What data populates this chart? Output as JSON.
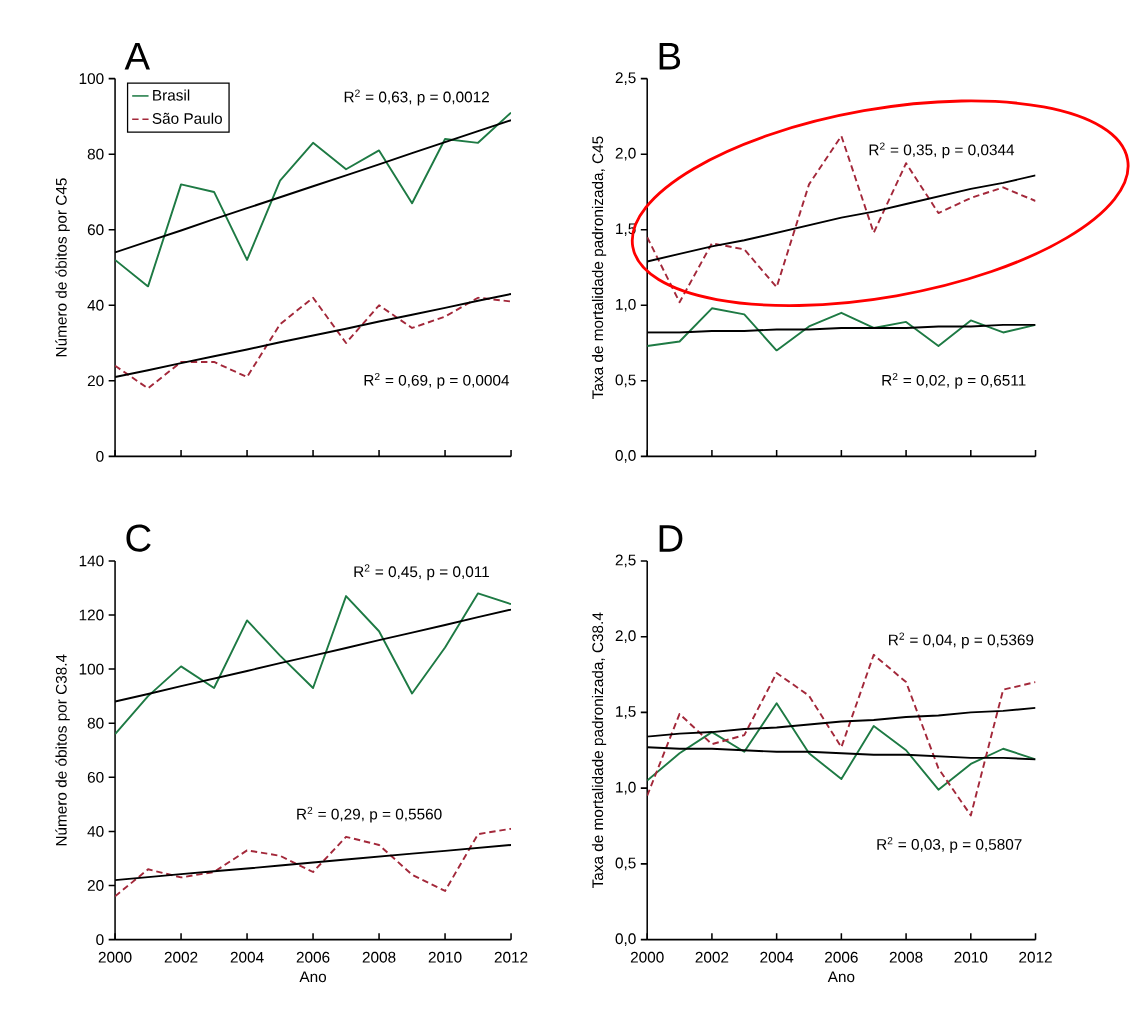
{
  "chart_data": [
    {
      "type": "line",
      "title": "A",
      "ylabel": "Número de óbitos por C45",
      "x": [
        2000,
        2001,
        2002,
        2003,
        2004,
        2005,
        2006,
        2007,
        2008,
        2009,
        2010,
        2011,
        2012
      ],
      "series": [
        {
          "name": "Brasil",
          "color": "#1e7a44",
          "line_style": "solid",
          "values": [
            52,
            45,
            72,
            70,
            52,
            73,
            83,
            76,
            81,
            67,
            84,
            83,
            91
          ]
        },
        {
          "name": "São Paulo",
          "color": "#a3283a",
          "line_style": "dashed",
          "values": [
            24,
            18,
            25,
            25,
            21,
            35,
            42,
            30,
            40,
            34,
            37,
            42,
            41
          ]
        },
        {
          "type": "line",
          "color": "#000000",
          "line_style": "solid",
          "values": [
            54,
            56.9,
            59.8,
            62.8,
            65.7,
            68.6,
            71.5,
            74.4,
            77.3,
            80.3,
            83.2,
            86.1,
            89
          ]
        },
        {
          "type": "line",
          "color": "#000000",
          "line_style": "solid",
          "values": [
            21,
            22.8,
            24.7,
            26.5,
            28.3,
            30.2,
            32,
            33.8,
            35.7,
            37.5,
            39.3,
            41.2,
            43
          ]
        }
      ],
      "xlim": [
        2000,
        2012
      ],
      "xticks": [
        2000,
        2002,
        2004,
        2006,
        2008,
        2010,
        2012
      ],
      "ylim": [
        0,
        100
      ],
      "yticks": [
        0,
        20,
        40,
        60,
        80,
        100
      ],
      "tick_labels": "y",
      "legend": "top left",
      "marker": "none",
      "grid": false,
      "annotations": [
        "R$^{2}$ = 0,63, p = 0,0012",
        "R$^{2}$ = 0,69, p = 0,0004"
      ]
    },
    {
      "type": "line",
      "title": "B",
      "ylabel": "Taxa de mortalidade padronizada, C45",
      "x": [
        2000,
        2001,
        2002,
        2003,
        2004,
        2005,
        2006,
        2007,
        2008,
        2009,
        2010,
        2011,
        2012
      ],
      "series": [
        {
          "color": "#1e7a44",
          "line_style": "solid",
          "values": [
            0.73,
            0.76,
            0.98,
            0.94,
            0.7,
            0.86,
            0.95,
            0.85,
            0.89,
            0.73,
            0.9,
            0.82,
            0.87
          ]
        },
        {
          "color": "#a3283a",
          "line_style": "dashed",
          "values": [
            1.45,
            1.02,
            1.41,
            1.37,
            1.12,
            1.8,
            2.12,
            1.48,
            1.94,
            1.61,
            1.71,
            1.78,
            1.69
          ]
        },
        {
          "type": "line",
          "color": "#000000",
          "line_style": "solid",
          "values": [
            1.29,
            1.34,
            1.39,
            1.43,
            1.48,
            1.53,
            1.58,
            1.62,
            1.67,
            1.72,
            1.77,
            1.81,
            1.86
          ]
        },
        {
          "type": "line",
          "color": "#000000",
          "line_style": "solid",
          "values": [
            0.82,
            0.82,
            0.83,
            0.83,
            0.84,
            0.84,
            0.85,
            0.85,
            0.85,
            0.86,
            0.86,
            0.87,
            0.87
          ]
        }
      ],
      "xlim": [
        2000,
        2012
      ],
      "xticks": [
        2000,
        2002,
        2004,
        2006,
        2008,
        2010,
        2012
      ],
      "ylim": [
        0,
        2.5
      ],
      "yticks": [
        {
          "value": 0,
          "label": "0,0"
        },
        {
          "value": 0.5,
          "label": "0,5"
        },
        {
          "value": 1,
          "label": "1,0"
        },
        {
          "value": 1.5,
          "label": "1,5"
        },
        {
          "value": 2,
          "label": "2,0"
        },
        {
          "value": 2.5,
          "label": "2,5"
        }
      ],
      "tick_labels": "y",
      "marker": "none",
      "grid": false,
      "annotations": [
        "R$^{2}$ = 0,35, p = 0,0344",
        "R$^{2}$ = 0,02, p = 0,6511"
      ]
    },
    {
      "type": "line",
      "title": "C",
      "xlabel": "Ano",
      "ylabel": "Número de óbitos por C38.4",
      "x": [
        2000,
        2001,
        2002,
        2003,
        2004,
        2005,
        2006,
        2007,
        2008,
        2009,
        2010,
        2011,
        2012
      ],
      "series": [
        {
          "color": "#1e7a44",
          "line_style": "solid",
          "values": [
            76,
            90,
            101,
            93,
            118,
            105,
            93,
            127,
            114,
            91,
            108,
            128,
            124
          ]
        },
        {
          "color": "#a3283a",
          "line_style": "dashed",
          "values": [
            16,
            26,
            23,
            25,
            33,
            31,
            25,
            38,
            35,
            24,
            18,
            39,
            41
          ]
        },
        {
          "type": "line",
          "color": "#000000",
          "line_style": "solid",
          "values": [
            88,
            90.8,
            93.7,
            96.5,
            99.3,
            102.2,
            105,
            107.8,
            110.7,
            113.5,
            116.3,
            119.2,
            122
          ]
        },
        {
          "type": "line",
          "color": "#000000",
          "line_style": "solid",
          "values": [
            22,
            23.1,
            24.2,
            25.3,
            26.3,
            27.4,
            28.5,
            29.6,
            30.7,
            31.8,
            32.8,
            33.9,
            35
          ]
        }
      ],
      "xlim": [
        2000,
        2012
      ],
      "xticks": [
        2000,
        2002,
        2004,
        2006,
        2008,
        2010,
        2012
      ],
      "ylim": [
        0,
        140
      ],
      "yticks": [
        0,
        20,
        40,
        60,
        80,
        100,
        120,
        140
      ],
      "marker": "none",
      "grid": false,
      "annotations": [
        "R$^{2}$ = 0,45, p = 0,011",
        "R$^{2}$ = 0,29, p = 0,5560"
      ]
    },
    {
      "type": "line",
      "title": "D",
      "xlabel": "Ano",
      "ylabel": "Taxa de mortalidade padronizada, C38.4",
      "x": [
        2000,
        2001,
        2002,
        2003,
        2004,
        2005,
        2006,
        2007,
        2008,
        2009,
        2010,
        2011,
        2012
      ],
      "series": [
        {
          "color": "#1e7a44",
          "line_style": "solid",
          "values": [
            1.05,
            1.23,
            1.37,
            1.24,
            1.56,
            1.23,
            1.06,
            1.41,
            1.25,
            0.99,
            1.16,
            1.26,
            1.19
          ]
        },
        {
          "color": "#a3283a",
          "line_style": "dashed",
          "values": [
            0.95,
            1.49,
            1.29,
            1.35,
            1.76,
            1.61,
            1.27,
            1.88,
            1.7,
            1.13,
            0.82,
            1.65,
            1.7
          ]
        },
        {
          "type": "line",
          "color": "#000000",
          "line_style": "solid",
          "values": [
            1.34,
            1.36,
            1.37,
            1.39,
            1.4,
            1.42,
            1.44,
            1.45,
            1.47,
            1.48,
            1.5,
            1.51,
            1.53
          ]
        },
        {
          "type": "line",
          "color": "#000000",
          "line_style": "solid",
          "values": [
            1.27,
            1.26,
            1.26,
            1.25,
            1.24,
            1.24,
            1.23,
            1.22,
            1.22,
            1.21,
            1.2,
            1.2,
            1.19
          ]
        }
      ],
      "xlim": [
        2000,
        2012
      ],
      "xticks": [
        2000,
        2002,
        2004,
        2006,
        2008,
        2010,
        2012
      ],
      "ylim": [
        0,
        2.5
      ],
      "yticks": [
        {
          "value": 0,
          "label": "0,0"
        },
        {
          "value": 0.5,
          "label": "0,5"
        },
        {
          "value": 1,
          "label": "1,0"
        },
        {
          "value": 1.5,
          "label": "1,5"
        },
        {
          "value": 2,
          "label": "2,0"
        },
        {
          "value": 2.5,
          "label": "2,5"
        }
      ],
      "marker": "none",
      "grid": false,
      "annotations": [
        "R$^{2}$ = 0,04, p = 0,5369",
        "R$^{2}$ = 0,03, p = 0,5807"
      ]
    }
  ]
}
